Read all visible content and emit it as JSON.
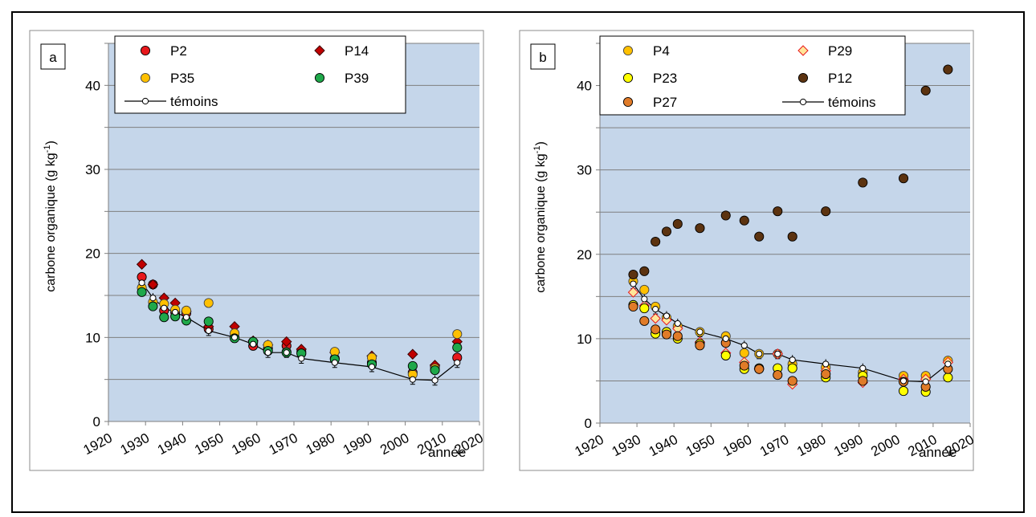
{
  "chart_data": [
    {
      "type": "scatter",
      "panel_label": "a",
      "xlabel": "année",
      "ylabel_main": "carbone organique (g kg",
      "ylabel_sup": "-1",
      "ylabel_end": ")",
      "xlim": [
        1920,
        2020
      ],
      "ylim": [
        0,
        45
      ],
      "xticks": [
        1920,
        1930,
        1940,
        1950,
        1960,
        1970,
        1980,
        1990,
        2000,
        2010,
        2020
      ],
      "yticks": [
        0,
        10,
        20,
        30,
        40
      ],
      "grid": "horizontal every 5",
      "background": "#c5d6ea",
      "legend_placement": "top",
      "series": [
        {
          "name": "P2",
          "marker": "circle",
          "color": "#e8181c",
          "x": [
            1929,
            1932,
            1935,
            1938,
            1941,
            1947,
            1954,
            1959,
            1963,
            1968,
            1972,
            1981,
            1991,
            2002,
            2008,
            2014
          ],
          "y": [
            17.2,
            16.3,
            13.2,
            13.0,
            12.9,
            11.0,
            10.0,
            9.0,
            8.7,
            9.0,
            8.3,
            7.5,
            7.0,
            5.8,
            6.5,
            7.6
          ]
        },
        {
          "name": "P14",
          "marker": "diamond",
          "color": "#c00000",
          "x": [
            1929,
            1932,
            1935,
            1938,
            1941,
            1947,
            1954,
            1959,
            1963,
            1968,
            1972,
            1981,
            1991,
            2002,
            2008,
            2014
          ],
          "y": [
            18.7,
            16.3,
            14.7,
            14.1,
            13.1,
            11.3,
            11.3,
            9.6,
            9.1,
            9.5,
            8.6,
            8.2,
            7.8,
            8.0,
            6.7,
            9.5
          ]
        },
        {
          "name": "P35",
          "marker": "circle",
          "color": "#ffc000",
          "x": [
            1929,
            1932,
            1935,
            1938,
            1941,
            1947,
            1954,
            1959,
            1963,
            1968,
            1972,
            1981,
            1991,
            2002,
            2008,
            2014
          ],
          "y": [
            15.9,
            14.2,
            14.0,
            13.3,
            13.2,
            14.1,
            10.5,
            9.4,
            9.1,
            8.3,
            8.1,
            8.3,
            7.6,
            5.6,
            6.3,
            10.4
          ]
        },
        {
          "name": "P39",
          "marker": "circle",
          "color": "#1fa84a",
          "x": [
            1929,
            1932,
            1935,
            1938,
            1941,
            1947,
            1954,
            1959,
            1963,
            1968,
            1972,
            1981,
            1991,
            2002,
            2008,
            2014
          ],
          "y": [
            15.4,
            13.7,
            12.4,
            12.5,
            12.0,
            11.9,
            9.9,
            9.5,
            8.4,
            8.2,
            8.1,
            7.4,
            6.8,
            6.6,
            6.1,
            8.8
          ]
        },
        {
          "name": "témoins",
          "marker": "open-circle-line",
          "color": "#000000",
          "x": [
            1929,
            1932,
            1935,
            1938,
            1941,
            1947,
            1954,
            1959,
            1963,
            1968,
            1972,
            1981,
            1991,
            2002,
            2008,
            2014
          ],
          "y": [
            16.5,
            14.7,
            13.5,
            13.0,
            12.4,
            10.8,
            10.0,
            9.2,
            8.2,
            8.2,
            7.5,
            7.0,
            6.5,
            5.0,
            4.9,
            7.0
          ]
        }
      ]
    },
    {
      "type": "scatter",
      "panel_label": "b",
      "xlabel": "année",
      "ylabel_main": "carbone organique (g kg",
      "ylabel_sup": "-1",
      "ylabel_end": ")",
      "xlim": [
        1920,
        2020
      ],
      "ylim": [
        0,
        45
      ],
      "xticks": [
        1920,
        1930,
        1940,
        1950,
        1960,
        1970,
        1980,
        1990,
        2000,
        2010,
        2020
      ],
      "yticks": [
        0,
        10,
        20,
        30,
        40
      ],
      "grid": "horizontal every 5",
      "background": "#c5d6ea",
      "legend_placement": "top",
      "series": [
        {
          "name": "P4",
          "marker": "circle",
          "color": "#ffc000",
          "x": [
            1929,
            1932,
            1935,
            1938,
            1941,
            1947,
            1954,
            1959,
            1963,
            1968,
            1972,
            1981,
            1991,
            2002,
            2008,
            2014
          ],
          "y": [
            16.8,
            15.8,
            13.8,
            12.5,
            11.5,
            10.8,
            10.3,
            8.3,
            8.2,
            8.2,
            7.0,
            6.6,
            6.0,
            5.6,
            5.6,
            7.4
          ]
        },
        {
          "name": "P29",
          "marker": "diamond",
          "color": "#ffc000",
          "x": [
            1929,
            1932,
            1935,
            1938,
            1941,
            1947,
            1954,
            1959,
            1963,
            1968,
            1972,
            1981,
            1991,
            2002,
            2008,
            2014
          ],
          "y": [
            15.5,
            13.9,
            12.4,
            12.2,
            11.2,
            9.6,
            8.3,
            7.2,
            6.4,
            8.2,
            4.6,
            6.2,
            4.8,
            5.2,
            5.2,
            7.2
          ]
        },
        {
          "name": "P23",
          "marker": "circle",
          "color": "#ffff00",
          "x": [
            1929,
            1932,
            1935,
            1938,
            1941,
            1947,
            1954,
            1959,
            1963,
            1968,
            1972,
            1981,
            1991,
            2002,
            2008,
            2014
          ],
          "y": [
            14.0,
            13.6,
            10.6,
            10.8,
            10.0,
            9.4,
            8.0,
            6.4,
            6.5,
            6.5,
            6.5,
            5.4,
            5.6,
            3.8,
            3.7,
            5.4
          ]
        },
        {
          "name": "P12",
          "marker": "circle",
          "color": "#5c3310",
          "x": [
            1929,
            1932,
            1935,
            1938,
            1941,
            1947,
            1954,
            1959,
            1963,
            1968,
            1972,
            1981,
            1991,
            2002,
            2008,
            2014
          ],
          "y": [
            17.6,
            18.0,
            21.5,
            22.7,
            23.6,
            23.1,
            24.6,
            24.0,
            22.1,
            25.1,
            22.1,
            25.1,
            28.5,
            29.0,
            39.4,
            41.9
          ]
        },
        {
          "name": "P27",
          "marker": "circle",
          "color": "#e07b28",
          "x": [
            1929,
            1932,
            1935,
            1938,
            1941,
            1947,
            1954,
            1959,
            1963,
            1968,
            1972,
            1981,
            1991,
            2002,
            2008,
            2014
          ],
          "y": [
            13.8,
            12.1,
            11.1,
            10.5,
            10.3,
            9.2,
            9.5,
            6.8,
            6.4,
            5.7,
            5.0,
            5.8,
            5.0,
            4.9,
            4.3,
            6.4
          ]
        },
        {
          "name": "témoins",
          "marker": "open-circle-line",
          "color": "#000000",
          "x": [
            1929,
            1932,
            1935,
            1938,
            1941,
            1947,
            1954,
            1959,
            1963,
            1968,
            1972,
            1981,
            1991,
            2002,
            2008,
            2014
          ],
          "y": [
            16.5,
            14.7,
            13.5,
            12.7,
            11.8,
            10.8,
            10.0,
            9.2,
            8.2,
            8.2,
            7.5,
            7.0,
            6.5,
            5.0,
            4.9,
            7.0
          ]
        }
      ]
    }
  ]
}
